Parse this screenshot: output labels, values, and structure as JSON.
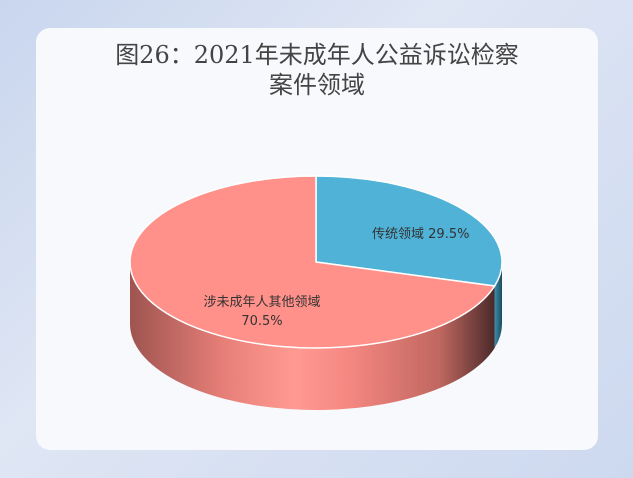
{
  "chart_data": {
    "type": "pie",
    "title_line1": "图26：2021年未成年人公益诉讼检察",
    "title_line2": "案件领域",
    "slices": [
      {
        "label": "传统领域",
        "value": 29.5,
        "display": "29.5%",
        "color": "#4fb2d6",
        "side": "#2f7f9c"
      },
      {
        "label": "涉未成年人其他领域",
        "value": 70.5,
        "display": "70.5%",
        "color": "#ff918a",
        "side": "#d9716b"
      }
    ],
    "style": "3d"
  }
}
